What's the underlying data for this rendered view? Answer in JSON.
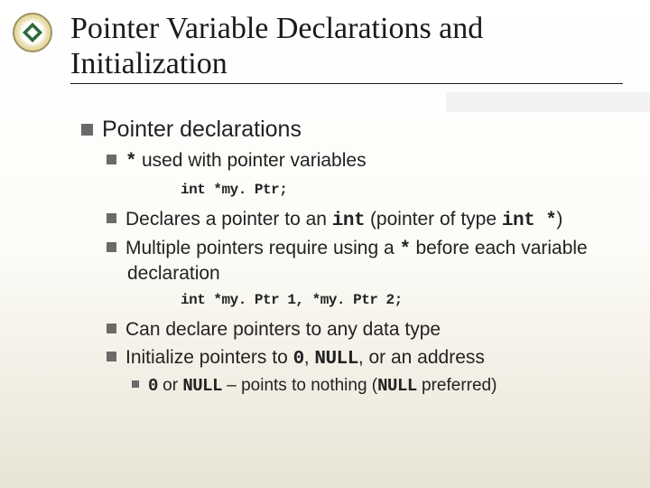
{
  "slide": {
    "title": "Pointer Variable Declarations and Initialization",
    "bullets": {
      "b1": "Pointer declarations",
      "b2_pre": "*",
      "b2_post": " used with pointer variables",
      "code1": "int *my. Ptr;",
      "b3_pre": "Declares a pointer to an ",
      "b3_code1": "int",
      "b3_mid": " (pointer of type ",
      "b3_code2": "int *",
      "b3_post": ")",
      "b4_pre": "Multiple pointers require using a ",
      "b4_code": "*",
      "b4_post": " before each variable declaration",
      "code2": "int *my. Ptr 1, *my. Ptr 2;",
      "b5": "Can declare pointers to any data type",
      "b6_pre": "Initialize pointers to ",
      "b6_c1": "0",
      "b6_m1": ", ",
      "b6_c2": "NULL",
      "b6_post": ", or an address",
      "b7_c1": "0",
      "b7_m1": " or ",
      "b7_c2": "NULL",
      "b7_m2": " – points to nothing (",
      "b7_c3": "NULL",
      "b7_post": " preferred)"
    }
  }
}
